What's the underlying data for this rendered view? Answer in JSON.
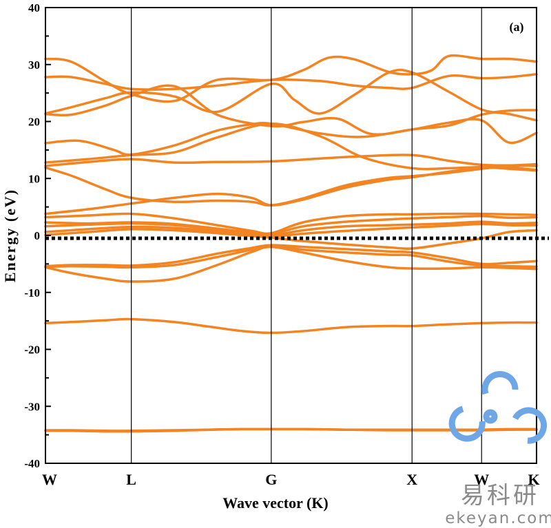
{
  "chart_data": {
    "type": "line",
    "panel_label": "(a)",
    "xlabel": "Wave vector (K)",
    "ylabel": "Energy (eV)",
    "ylim": [
      -40,
      40
    ],
    "yticks": [
      40,
      30,
      20,
      10,
      0,
      -10,
      -20,
      -30,
      -40
    ],
    "high_symmetry_points": [
      {
        "label": "W",
        "k": 0
      },
      {
        "label": "L",
        "k": 1.0
      },
      {
        "label": "G",
        "k": 2.63
      },
      {
        "label": "X",
        "k": 4.27
      },
      {
        "label": "W",
        "k": 5.08
      },
      {
        "label": "K",
        "k": 5.72
      }
    ],
    "fermi_level": -0.5,
    "line_color": "#F28422",
    "bands": [
      {
        "k": [
          0,
          0.3,
          0.7,
          1.0,
          1.5,
          1.9,
          2.3,
          2.63,
          3.0,
          3.5,
          4.0,
          4.27,
          4.7,
          5.08,
          5.4,
          5.72
        ],
        "e": [
          -34.3,
          -34.3,
          -34.4,
          -34.4,
          -34.3,
          -34.1,
          -34.0,
          -34.0,
          -34.0,
          -34.1,
          -34.2,
          -34.2,
          -34.2,
          -34.2,
          -34.1,
          -34.1
        ]
      },
      {
        "k": [
          0,
          0.3,
          0.7,
          1.0,
          1.5,
          1.9,
          2.3,
          2.63,
          3.0,
          3.5,
          4.0,
          4.27,
          4.7,
          5.08,
          5.4,
          5.72
        ],
        "e": [
          -34.2,
          -34.2,
          -34.3,
          -34.3,
          -34.2,
          -34.1,
          -34.0,
          -34.0,
          -34.0,
          -34.1,
          -34.1,
          -34.1,
          -34.1,
          -34.1,
          -34.0,
          -34.0
        ]
      },
      {
        "k": [
          0,
          0.3,
          0.7,
          1.0,
          1.5,
          1.9,
          2.3,
          2.63,
          3.0,
          3.5,
          4.0,
          4.27,
          4.7,
          5.08,
          5.4,
          5.72
        ],
        "e": [
          -15.4,
          -15.2,
          -14.9,
          -14.7,
          -15.2,
          -16.0,
          -16.8,
          -17.1,
          -16.8,
          -16.1,
          -15.9,
          -15.9,
          -15.6,
          -15.4,
          -15.3,
          -15.3
        ]
      },
      {
        "k": [
          0,
          0.3,
          0.7,
          1.0,
          1.5,
          2.0,
          2.4,
          2.63,
          3.0,
          3.5,
          4.0,
          4.27,
          4.7,
          5.08,
          5.4,
          5.72
        ],
        "e": [
          -5.6,
          -6.6,
          -7.6,
          -8.1,
          -7.6,
          -5.2,
          -2.9,
          -2.0,
          -3.0,
          -4.5,
          -5.6,
          -5.8,
          -5.8,
          -5.6,
          -5.7,
          -5.9
        ]
      },
      {
        "k": [
          0,
          0.3,
          0.7,
          1.0,
          1.5,
          2.0,
          2.4,
          2.63,
          3.0,
          3.5,
          4.0,
          4.27,
          4.7,
          5.08,
          5.4,
          5.72
        ],
        "e": [
          -5.5,
          -5.4,
          -5.5,
          -5.6,
          -5.2,
          -3.8,
          -2.5,
          -1.8,
          -2.5,
          -3.0,
          -3.4,
          -3.5,
          -4.6,
          -5.3,
          -5.4,
          -5.5
        ]
      },
      {
        "k": [
          0,
          0.3,
          0.7,
          1.0,
          1.5,
          2.0,
          2.4,
          2.63,
          3.0,
          3.5,
          4.0,
          4.27,
          4.7,
          5.08,
          5.4,
          5.72
        ],
        "e": [
          -5.4,
          -5.2,
          -5.2,
          -5.3,
          -4.7,
          -3.2,
          -2.2,
          -1.7,
          -2.0,
          -2.4,
          -2.8,
          -3.0,
          -4.0,
          -5.0,
          -4.8,
          -4.5
        ]
      },
      {
        "k": [
          0,
          0.5,
          1.0,
          1.5,
          2.0,
          2.4,
          2.63,
          3.0,
          3.5,
          4.0,
          4.27,
          4.7,
          5.08,
          5.4,
          5.72
        ],
        "e": [
          0.1,
          0.6,
          1.1,
          0.9,
          0.4,
          -0.1,
          -0.4,
          -1.0,
          -1.6,
          -2.1,
          -2.3,
          -1.4,
          -0.5,
          0.6,
          0.9
        ]
      },
      {
        "k": [
          0,
          0.5,
          1.0,
          1.5,
          2.0,
          2.4,
          2.63,
          3.0,
          3.5,
          4.0,
          4.27,
          4.7,
          5.08,
          5.4,
          5.72
        ],
        "e": [
          0.6,
          1.1,
          1.5,
          1.3,
          0.7,
          0.1,
          -0.2,
          0.3,
          0.8,
          1.2,
          1.4,
          1.7,
          2.0,
          1.8,
          1.8
        ]
      },
      {
        "k": [
          0,
          0.5,
          1.0,
          1.5,
          2.0,
          2.4,
          2.63,
          3.0,
          3.5,
          4.0,
          4.27,
          4.7,
          5.08,
          5.4,
          5.72
        ],
        "e": [
          1.6,
          1.9,
          2.1,
          1.8,
          1.0,
          0.3,
          0.0,
          0.9,
          1.6,
          1.8,
          1.9,
          2.1,
          2.4,
          2.1,
          2.2
        ]
      },
      {
        "k": [
          0,
          0.5,
          1.0,
          1.5,
          2.0,
          2.4,
          2.63,
          3.0,
          3.5,
          4.0,
          4.27,
          4.7,
          5.08,
          5.4,
          5.72
        ],
        "e": [
          2.3,
          2.1,
          2.3,
          2.0,
          1.2,
          0.5,
          0.2,
          1.6,
          2.4,
          2.8,
          3.0,
          3.2,
          3.4,
          3.1,
          3.2
        ]
      },
      {
        "k": [
          0,
          0.5,
          1.0,
          1.5,
          2.0,
          2.4,
          2.63,
          3.0,
          3.5,
          4.0,
          4.27,
          4.7,
          5.08,
          5.4,
          5.72
        ],
        "e": [
          3.2,
          3.5,
          3.8,
          3.0,
          1.8,
          0.8,
          0.4,
          2.3,
          3.4,
          3.7,
          3.7,
          3.8,
          3.8,
          3.7,
          3.6
        ]
      },
      {
        "k": [
          0,
          0.5,
          1.0,
          1.5,
          2.0,
          2.4,
          2.63,
          3.0,
          3.5,
          4.0,
          4.27,
          4.7,
          5.08,
          5.4,
          5.72
        ],
        "e": [
          3.8,
          4.6,
          5.6,
          6.6,
          7.3,
          6.6,
          5.3,
          6.3,
          8.4,
          9.8,
          10.2,
          11.2,
          11.8,
          11.9,
          11.5
        ]
      },
      {
        "k": [
          0,
          0.3,
          0.7,
          1.0,
          1.5,
          2.0,
          2.4,
          2.63,
          3.0,
          3.5,
          4.0,
          4.27,
          4.7,
          5.08,
          5.4,
          5.72
        ],
        "e": [
          11.9,
          10.5,
          8.1,
          6.6,
          5.9,
          6.1,
          5.9,
          5.3,
          6.5,
          8.8,
          10.1,
          10.4,
          11.0,
          11.7,
          12.2,
          12.2
        ]
      },
      {
        "k": [
          0,
          0.5,
          1.0,
          1.5,
          2.0,
          2.63,
          3.2,
          3.7,
          4.27,
          4.7,
          5.08,
          5.4,
          5.72
        ],
        "e": [
          12.2,
          12.9,
          13.4,
          12.8,
          12.9,
          13.0,
          13.5,
          13.9,
          14.1,
          13.1,
          12.4,
          12.3,
          12.5
        ]
      },
      {
        "k": [
          0,
          0.5,
          1.0,
          1.5,
          2.0,
          2.63,
          3.2,
          3.7,
          4.27,
          4.7,
          5.08,
          5.4,
          5.72
        ],
        "e": [
          12.8,
          13.4,
          14.1,
          14.6,
          17.2,
          19.6,
          17.4,
          13.7,
          11.8,
          11.8,
          12.0,
          11.7,
          11.4
        ]
      },
      {
        "k": [
          0,
          0.4,
          0.8,
          1.0,
          1.5,
          2.0,
          2.4,
          2.63,
          3.2,
          3.7,
          4.27,
          4.7,
          5.08,
          5.4,
          5.72
        ],
        "e": [
          16.2,
          16.6,
          15.0,
          14.2,
          15.8,
          18.4,
          19.5,
          19.6,
          17.9,
          17.3,
          18.6,
          19.3,
          21.2,
          21.9,
          22.0
        ]
      },
      {
        "k": [
          0,
          0.3,
          0.7,
          1.0,
          1.5,
          2.0,
          2.63,
          3.0,
          3.4,
          3.8,
          4.27,
          4.7,
          5.08,
          5.4,
          5.72
        ],
        "e": [
          21.3,
          21.2,
          22.8,
          24.5,
          26.2,
          21.2,
          19.2,
          19.9,
          20.5,
          17.8,
          18.6,
          19.8,
          20.2,
          16.3,
          18.0
        ]
      },
      {
        "k": [
          0,
          0.3,
          0.7,
          1.0,
          1.5,
          2.0,
          2.63,
          2.9,
          3.2,
          3.6,
          4.0,
          4.27,
          4.7,
          5.08,
          5.4,
          5.72
        ],
        "e": [
          21.4,
          22.5,
          24.1,
          25.1,
          24.4,
          21.7,
          26.6,
          23.8,
          21.4,
          24.7,
          28.6,
          28.6,
          25.2,
          22.1,
          21.3,
          20.2
        ]
      },
      {
        "k": [
          0,
          0.3,
          0.7,
          1.0,
          1.5,
          2.0,
          2.63,
          3.2,
          3.6,
          4.0,
          4.27,
          4.7,
          5.08,
          5.4,
          5.72
        ],
        "e": [
          27.8,
          27.8,
          26.6,
          25.7,
          25.7,
          26.3,
          27.3,
          27.1,
          26.3,
          25.9,
          25.9,
          28.0,
          27.6,
          27.8,
          28.3
        ]
      },
      {
        "k": [
          0,
          0.3,
          0.7,
          1.0,
          1.5,
          2.0,
          2.63,
          3.0,
          3.3,
          3.6,
          4.0,
          4.27,
          4.5,
          4.7,
          5.08,
          5.4,
          5.72
        ],
        "e": [
          31.0,
          30.5,
          27.0,
          24.8,
          23.6,
          27.3,
          27.3,
          29.0,
          31.2,
          30.9,
          28.7,
          28.3,
          29.0,
          31.5,
          31.0,
          31.0,
          30.5
        ]
      }
    ]
  },
  "watermark": {
    "cn_text": "易科研",
    "url_text": "ekeyan.com",
    "logo_color": "#6FA6E6"
  }
}
